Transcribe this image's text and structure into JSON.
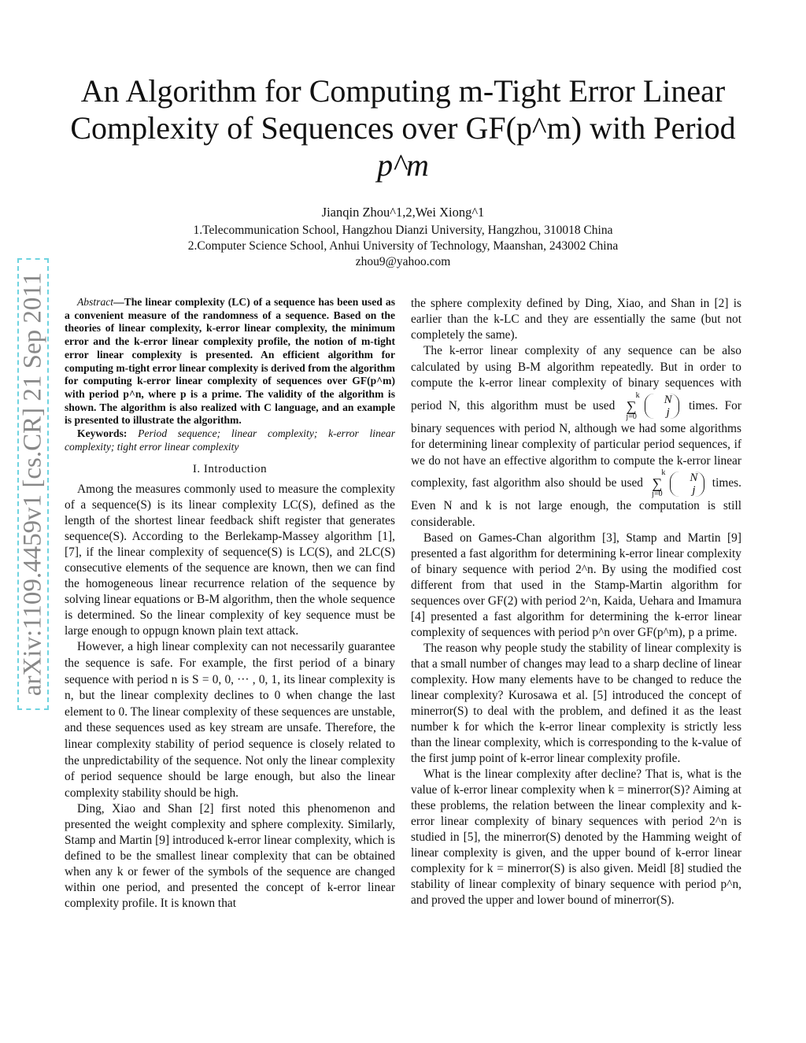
{
  "title": {
    "line1": "An Algorithm for Computing m-Tight Error Linear",
    "line2": "Complexity of Sequences over GF(p^m) with Period",
    "line3": "p^m"
  },
  "authors": "Jianqin Zhou^1,2,Wei Xiong^1",
  "affiliations": [
    "1.Telecommunication School, Hangzhou Dianzi University, Hangzhou, 310018 China",
    "2.Computer Science School, Anhui University of Technology, Maanshan, 243002 China",
    "zhou9@yahoo.com"
  ],
  "arxiv_stamp": "arXiv:1109.4459v1  [cs.CR]  21 Sep 2011",
  "abstract": {
    "label": "Abstract",
    "text": "—The linear complexity (LC) of a sequence has been used as a convenient measure of the randomness of a sequence. Based on the theories of linear complexity, k-error linear complexity, the minimum error and the k-error linear complexity profile, the notion of m-tight error linear complexity is presented. An efficient algorithm for computing m-tight error linear complexity is derived from the algorithm for computing k-error linear complexity of sequences over GF(p^m) with period p^n, where p is a prime. The validity of the algorithm is shown. The algorithm is also realized with C language, and an example is presented to illustrate the algorithm."
  },
  "keywords": {
    "label": "Keywords:",
    "text": "Period sequence; linear complexity; k-error linear complexity; tight error linear complexity"
  },
  "section1": "I. Introduction",
  "left_paragraphs": [
    "Among the measures commonly used to measure the complexity of a sequence(S) is its linear complexity LC(S), defined as the length of the shortest linear feedback shift register that generates sequence(S). According to the Berlekamp-Massey algorithm [1], [7], if the linear complexity of sequence(S) is LC(S), and 2LC(S) consecutive elements of the sequence are known, then we can find the homogeneous linear recurrence relation of the sequence by solving linear equations or B-M algorithm, then the whole sequence is determined. So the linear complexity of key sequence must be large enough to oppugn known plain text attack.",
    "However, a high linear complexity can not necessarily guarantee the sequence is safe. For example, the first period of a binary sequence with period n is S = 0, 0, ··· , 0, 1, its linear complexity is n, but the linear complexity declines to 0 when change the last element to 0. The linear complexity of these sequences are unstable, and these sequences used as key stream are unsafe. Therefore, the linear complexity stability of period sequence is closely related to the unpredictability of the sequence. Not only the linear complexity of period sequence should be large enough, but also the linear complexity stability should be high.",
    "Ding, Xiao and Shan [2] first noted this phenomenon and presented the weight complexity and sphere complexity. Similarly, Stamp and Martin [9] introduced k-error linear complexity, which is defined to be the smallest linear complexity that can be obtained when any k or fewer of the symbols of the sequence are changed within one period, and presented the concept of k-error linear complexity profile. It is known that"
  ],
  "right": {
    "p0": "the sphere complexity defined by Ding, Xiao, and Shan in [2] is earlier than the k-LC and they are essentially the same (but not completely the same).",
    "p1a": "The k-error linear complexity of any sequence can be also calculated by using B-M algorithm repeatedly. But in order to compute the k-error linear complexity of binary sequences with period N, this algorithm must be used",
    "p1b": "times. For binary sequences with period N, although we had some algorithms for determining linear complexity of particular period sequences, if we do not have an effective algorithm to compute the k-error linear complexity, fast algorithm also should be used",
    "p1c": "times. Even N and k is not large enough, the computation is still considerable.",
    "sum": {
      "upper": "k",
      "lower": "j=0",
      "top": "N",
      "bottom": "j"
    },
    "paragraphs": [
      "Based on Games-Chan algorithm [3], Stamp and Martin [9] presented a fast algorithm for determining k-error linear complexity of binary sequence with period 2^n. By using the modified cost different from that used in the Stamp-Martin algorithm for sequences over GF(2) with period 2^n, Kaida, Uehara and Imamura [4] presented a fast algorithm for determining the k-error linear complexity of sequences with period p^n over GF(p^m), p a prime.",
      "The reason why people study the stability of linear complexity is that a small number of changes may lead to a sharp decline of linear complexity. How many elements have to be changed to reduce the linear complexity? Kurosawa et al. [5] introduced the concept of minerror(S) to deal with the problem, and defined it as the least number k for which the k-error linear complexity is strictly less than the linear complexity, which is corresponding to the k-value of the first jump point of k-error linear complexity profile.",
      "What is the linear complexity after decline? That is, what is the value of k-error linear complexity when k = minerror(S)? Aiming at these problems, the relation between the linear complexity and k-error linear complexity of binary sequences with period 2^n is studied in [5], the minerror(S) denoted by the Hamming weight of linear complexity is given, and the upper bound of k-error linear complexity for k = minerror(S) is also given. Meidl [8] studied the stability of linear complexity of binary sequence with period p^n, and proved the upper and lower bound of minerror(S)."
    ]
  }
}
